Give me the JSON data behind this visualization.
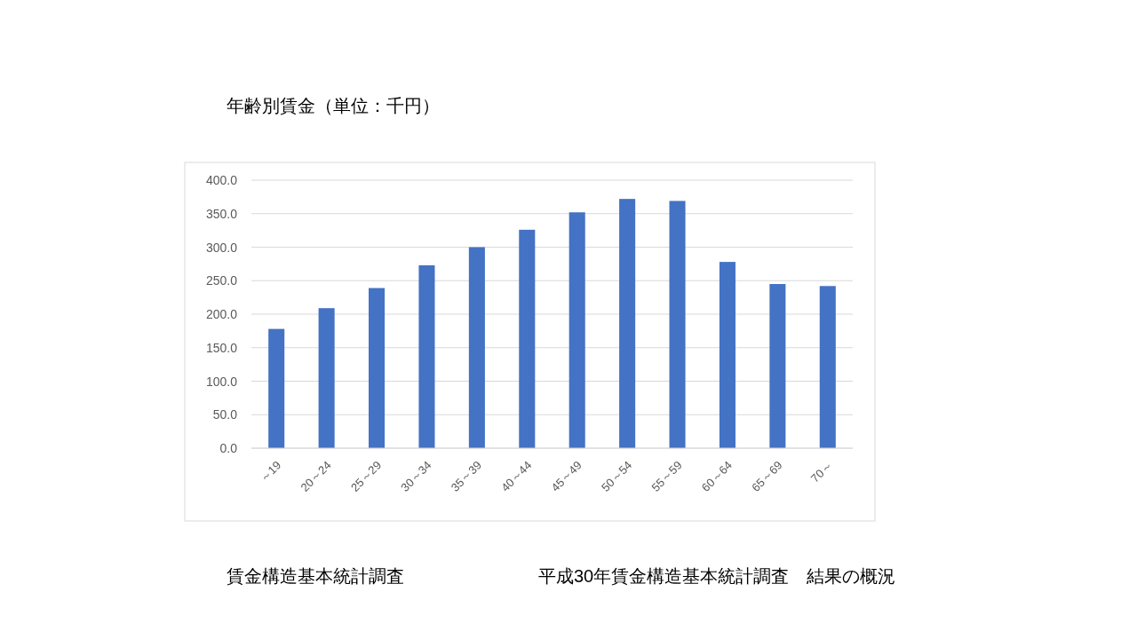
{
  "chart_data": {
    "type": "bar",
    "title": "年齢別賃金（単位：千円）",
    "categories": [
      "～19",
      "20～24",
      "25～29",
      "30～34",
      "35～39",
      "40～44",
      "45～49",
      "50～54",
      "55～59",
      "60～64",
      "65～69",
      "70～"
    ],
    "values": [
      178,
      209,
      239,
      273,
      300,
      326,
      352,
      372,
      369,
      278,
      245,
      242
    ],
    "color": "#4472c4",
    "ylim": [
      0,
      400
    ],
    "yticks": [
      {
        "value": 0,
        "label": "0.0"
      },
      {
        "value": 50,
        "label": "50.0"
      },
      {
        "value": 100,
        "label": "100.0"
      },
      {
        "value": 150,
        "label": "150.0"
      },
      {
        "value": 200,
        "label": "200.0"
      },
      {
        "value": 250,
        "label": "250.0"
      },
      {
        "value": 300,
        "label": "300.0"
      },
      {
        "value": 350,
        "label": "350.0"
      },
      {
        "value": 400,
        "label": "400.0"
      }
    ],
    "grid": "y",
    "annotations": [
      "賃金構造基本統計調査",
      "平成30年賃金構造基本統計調査　結果の概況"
    ]
  }
}
